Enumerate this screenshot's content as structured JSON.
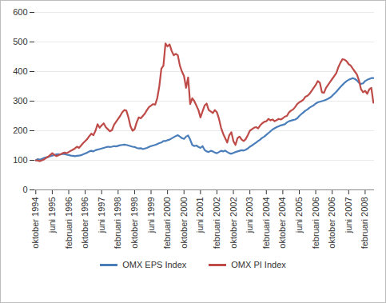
{
  "chart_data": {
    "type": "line",
    "categories": [
      "oktober 1994",
      null,
      null,
      null,
      null,
      null,
      null,
      null,
      "juni 1995",
      null,
      null,
      null,
      null,
      null,
      null,
      null,
      "februari 1996",
      null,
      null,
      null,
      null,
      null,
      null,
      null,
      "oktober 1996",
      null,
      null,
      null,
      null,
      null,
      null,
      null,
      "juni 1997",
      null,
      null,
      null,
      null,
      null,
      null,
      null,
      "februari 1998",
      null,
      null,
      null,
      null,
      null,
      null,
      null,
      "oktober 1998",
      null,
      null,
      null,
      null,
      null,
      null,
      null,
      "juni 1999",
      null,
      null,
      null,
      null,
      null,
      null,
      null,
      "februari 2000",
      null,
      null,
      null,
      null,
      null,
      null,
      null,
      "oktober 2000",
      null,
      null,
      null,
      null,
      null,
      null,
      null,
      "juni 2001",
      null,
      null,
      null,
      null,
      null,
      null,
      null,
      "februari 2002",
      null,
      null,
      null,
      null,
      null,
      null,
      null,
      "oktober 2002",
      null,
      null,
      null,
      null,
      null,
      null,
      null,
      "juni 2003",
      null,
      null,
      null,
      null,
      null,
      null,
      null,
      "februari 2004",
      null,
      null,
      null,
      null,
      null,
      null,
      null,
      "oktober 2004",
      null,
      null,
      null,
      null,
      null,
      null,
      null,
      "juni 2005",
      null,
      null,
      null,
      null,
      null,
      null,
      null,
      "februari 2006",
      null,
      null,
      null,
      null,
      null,
      null,
      null,
      "oktober 2006",
      null,
      null,
      null,
      null,
      null,
      null,
      null,
      "juni 2007",
      null,
      null,
      null,
      null,
      null,
      null,
      null,
      "februari 2008",
      null,
      null,
      null,
      null
    ],
    "series": [
      {
        "name": "OMX EPS Index",
        "color": "#4a7ebb",
        "values": [
          100,
          104,
          102,
          105,
          108,
          110,
          111,
          114,
          116,
          118,
          120,
          121,
          120,
          122,
          121,
          119,
          118,
          116,
          115,
          114,
          115,
          116,
          117,
          120,
          123,
          126,
          130,
          132,
          130,
          134,
          136,
          138,
          140,
          142,
          144,
          146,
          145,
          146,
          148,
          147,
          149,
          151,
          152,
          153,
          152,
          150,
          148,
          146,
          145,
          142,
          140,
          141,
          138,
          140,
          142,
          145,
          148,
          150,
          152,
          155,
          158,
          160,
          165,
          165,
          168,
          170,
          174,
          178,
          182,
          185,
          180,
          175,
          172,
          180,
          184,
          170,
          152,
          148,
          150,
          145,
          142,
          148,
          135,
          130,
          128,
          132,
          130,
          126,
          124,
          128,
          132,
          130,
          133,
          128,
          124,
          122,
          125,
          128,
          130,
          132,
          134,
          133,
          136,
          140,
          146,
          150,
          155,
          160,
          165,
          170,
          176,
          180,
          186,
          192,
          198,
          204,
          208,
          212,
          215,
          218,
          220,
          222,
          228,
          232,
          234,
          236,
          238,
          242,
          250,
          256,
          262,
          268,
          272,
          278,
          282,
          286,
          292,
          296,
          298,
          300,
          302,
          305,
          308,
          312,
          318,
          325,
          332,
          340,
          348,
          355,
          362,
          368,
          372,
          375,
          378,
          375,
          370,
          362,
          358,
          360,
          368,
          372,
          375,
          378,
          378
        ]
      },
      {
        "name": "OMX PI Index",
        "color": "#be4b48",
        "values": [
          100,
          99,
          97,
          100,
          103,
          108,
          112,
          118,
          124,
          118,
          114,
          117,
          120,
          124,
          126,
          124,
          128,
          132,
          136,
          140,
          146,
          142,
          150,
          158,
          165,
          172,
          182,
          190,
          185,
          200,
          222,
          210,
          218,
          225,
          212,
          205,
          198,
          202,
          220,
          230,
          240,
          250,
          262,
          270,
          268,
          245,
          215,
          200,
          205,
          228,
          245,
          242,
          250,
          258,
          270,
          280,
          285,
          290,
          288,
          310,
          350,
          410,
          420,
          495,
          485,
          492,
          470,
          455,
          460,
          455,
          420,
          400,
          385,
          345,
          380,
          290,
          310,
          300,
          285,
          270,
          245,
          265,
          285,
          292,
          270,
          265,
          260,
          270,
          262,
          240,
          210,
          190,
          175,
          160,
          185,
          195,
          165,
          152,
          175,
          180,
          170,
          165,
          172,
          185,
          200,
          205,
          210,
          212,
          208,
          218,
          225,
          230,
          232,
          240,
          235,
          238,
          232,
          236,
          240,
          238,
          242,
          248,
          250,
          262,
          268,
          272,
          280,
          290,
          296,
          300,
          305,
          315,
          318,
          325,
          335,
          345,
          355,
          368,
          362,
          330,
          328,
          345,
          355,
          365,
          375,
          385,
          395,
          415,
          430,
          442,
          440,
          435,
          425,
          420,
          410,
          400,
          390,
          370,
          340,
          330,
          335,
          325,
          340,
          345,
          295
        ]
      }
    ],
    "ylim": [
      0,
      600
    ],
    "yticks": [
      0,
      100,
      200,
      300,
      400,
      500,
      600
    ],
    "grid": true,
    "legend": "bottom"
  }
}
